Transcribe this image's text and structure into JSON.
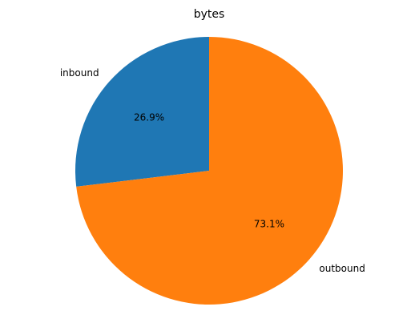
{
  "chart_data": {
    "type": "pie",
    "title": "bytes",
    "slices": [
      {
        "label": "inbound",
        "value": 26.9,
        "pct_label": "26.9%",
        "color": "#1f77b4"
      },
      {
        "label": "outbound",
        "value": 73.1,
        "pct_label": "73.1%",
        "color": "#ff7f0e"
      }
    ],
    "start_angle_deg": 90,
    "direction": "counterclockwise"
  }
}
